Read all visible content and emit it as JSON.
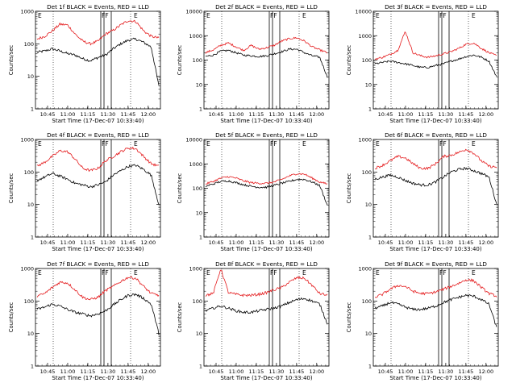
{
  "figure": {
    "rows": 3,
    "cols": 3,
    "colors": {
      "events": "#000000",
      "lld": "#e41a1c",
      "frame": "#000000",
      "background": "#ffffff"
    }
  },
  "chart_data": [
    {
      "type": "line",
      "title": "Det 1f BLACK = Events, RED = LLD",
      "xlabel": "Start Time (17-Dec-07 10:33:40)",
      "ylabel": "Counts/sec",
      "y_scale": "log",
      "ylim": [
        1,
        1000
      ],
      "x_ticks": [
        "10:45",
        "11:00",
        "11:15",
        "11:30",
        "11:45",
        "12:00"
      ],
      "y_ticks": [
        "1",
        "10",
        "100",
        "1000"
      ],
      "flags": [
        "E",
        "FF",
        "E"
      ],
      "series": [
        {
          "name": "Events",
          "color": "#000000",
          "y": [
            55,
            60,
            70,
            60,
            50,
            45,
            35,
            30,
            38,
            45,
            70,
            100,
            130,
            140,
            110,
            80,
            5
          ]
        },
        {
          "name": "LLD",
          "color": "#e41a1c",
          "y": [
            140,
            170,
            250,
            400,
            380,
            200,
            120,
            100,
            120,
            200,
            260,
            380,
            520,
            480,
            250,
            170,
            150
          ]
        }
      ]
    },
    {
      "type": "line",
      "title": "Det 2f BLACK = Events, RED = LLD",
      "xlabel": "Start Time (17-Dec-07 10:33:40)",
      "ylabel": "Counts/sec",
      "y_scale": "log",
      "ylim": [
        1,
        10000
      ],
      "x_ticks": [
        "10:45",
        "11:00",
        "11:15",
        "11:30",
        "11:45",
        "12:00"
      ],
      "y_ticks": [
        "1",
        "10",
        "100",
        "1000",
        "10000"
      ],
      "flags": [
        "E",
        "FF",
        "E"
      ],
      "series": [
        {
          "name": "Events",
          "color": "#000000",
          "y": [
            140,
            160,
            230,
            250,
            200,
            160,
            150,
            140,
            150,
            180,
            220,
            280,
            280,
            200,
            150,
            130,
            20
          ]
        },
        {
          "name": "LLD",
          "color": "#e41a1c",
          "y": [
            200,
            260,
            400,
            500,
            350,
            250,
            400,
            280,
            320,
            400,
            600,
            750,
            820,
            600,
            350,
            260,
            200
          ]
        }
      ]
    },
    {
      "type": "line",
      "title": "Det 3f BLACK = Events, RED = LLD",
      "xlabel": "Start Time (17-Dec-07 10:33:40)",
      "ylabel": "Counts/sec",
      "y_scale": "log",
      "ylim": [
        1,
        10000
      ],
      "x_ticks": [
        "10:45",
        "11:00",
        "11:15",
        "11:30",
        "11:45",
        "12:00"
      ],
      "y_ticks": [
        "1",
        "10",
        "100",
        "1000",
        "10000"
      ],
      "flags": [
        "E",
        "FF",
        "E"
      ],
      "series": [
        {
          "name": "Events",
          "color": "#000000",
          "y": [
            70,
            80,
            90,
            80,
            70,
            60,
            50,
            50,
            60,
            70,
            90,
            110,
            140,
            160,
            130,
            90,
            20
          ]
        },
        {
          "name": "LLD",
          "color": "#e41a1c",
          "y": [
            110,
            130,
            170,
            250,
            1500,
            200,
            150,
            130,
            150,
            180,
            220,
            300,
            450,
            500,
            300,
            200,
            150
          ]
        }
      ]
    },
    {
      "type": "line",
      "title": "Det 4f BLACK = Events, RED = LLD",
      "xlabel": "Start Time (17-Dec-07 10:33:40)",
      "ylabel": "Counts/sec",
      "y_scale": "log",
      "ylim": [
        1,
        1000
      ],
      "x_ticks": [
        "10:45",
        "11:00",
        "11:15",
        "11:30",
        "11:45",
        "12:00"
      ],
      "y_ticks": [
        "1",
        "10",
        "100",
        "1000"
      ],
      "flags": [
        "E",
        "FF",
        "E"
      ],
      "series": [
        {
          "name": "Events",
          "color": "#000000",
          "y": [
            55,
            70,
            90,
            75,
            60,
            45,
            40,
            35,
            40,
            50,
            80,
            110,
            150,
            160,
            120,
            80,
            10
          ]
        },
        {
          "name": "LLD",
          "color": "#e41a1c",
          "y": [
            150,
            200,
            300,
            450,
            420,
            250,
            130,
            110,
            130,
            220,
            300,
            420,
            550,
            520,
            300,
            180,
            150
          ]
        }
      ]
    },
    {
      "type": "line",
      "title": "Det 5f BLACK = Events, RED = LLD",
      "xlabel": "Start Time (17-Dec-07 10:33:40)",
      "ylabel": "Counts/sec",
      "y_scale": "log",
      "ylim": [
        1,
        10000
      ],
      "x_ticks": [
        "10:45",
        "11:00",
        "11:15",
        "11:30",
        "11:45",
        "12:00"
      ],
      "y_ticks": [
        "1",
        "10",
        "100",
        "1000",
        "10000"
      ],
      "flags": [
        "E",
        "FF",
        "E"
      ],
      "series": [
        {
          "name": "Events",
          "color": "#000000",
          "y": [
            120,
            150,
            190,
            200,
            170,
            140,
            120,
            110,
            110,
            130,
            160,
            190,
            230,
            230,
            180,
            130,
            20
          ]
        },
        {
          "name": "LLD",
          "color": "#e41a1c",
          "y": [
            150,
            190,
            260,
            300,
            260,
            200,
            170,
            160,
            160,
            180,
            230,
            320,
            400,
            380,
            260,
            180,
            150
          ]
        }
      ]
    },
    {
      "type": "line",
      "title": "Det 6f BLACK = Events, RED = LLD",
      "xlabel": "Start Time (17-Dec-07 10:33:40)",
      "ylabel": "Counts/sec",
      "y_scale": "log",
      "ylim": [
        1,
        1000
      ],
      "x_ticks": [
        "10:45",
        "11:00",
        "11:15",
        "11:30",
        "11:45",
        "12:00"
      ],
      "y_ticks": [
        "1",
        "10",
        "100",
        "1000"
      ],
      "flags": [
        "E",
        "FF",
        "E"
      ],
      "series": [
        {
          "name": "Events",
          "color": "#000000",
          "y": [
            60,
            70,
            80,
            70,
            55,
            45,
            40,
            40,
            50,
            70,
            100,
            120,
            130,
            110,
            90,
            70,
            10
          ]
        },
        {
          "name": "LLD",
          "color": "#e41a1c",
          "y": [
            130,
            160,
            220,
            300,
            270,
            180,
            130,
            130,
            180,
            300,
            330,
            400,
            500,
            380,
            220,
            150,
            140
          ]
        }
      ]
    },
    {
      "type": "line",
      "title": "Det 7f BLACK = Events, RED = LLD",
      "xlabel": "Start Time (17-Dec-07 10:33:40)",
      "ylabel": "Counts/sec",
      "y_scale": "log",
      "ylim": [
        1,
        1000
      ],
      "x_ticks": [
        "10:45",
        "11:00",
        "11:15",
        "11:30",
        "11:45",
        "12:00"
      ],
      "y_ticks": [
        "1",
        "10",
        "100",
        "1000"
      ],
      "flags": [
        "E",
        "FF",
        "E"
      ],
      "series": [
        {
          "name": "Events",
          "color": "#000000",
          "y": [
            55,
            65,
            80,
            70,
            55,
            45,
            40,
            35,
            40,
            50,
            75,
            110,
            150,
            160,
            120,
            80,
            10
          ]
        },
        {
          "name": "LLD",
          "color": "#e41a1c",
          "y": [
            140,
            170,
            260,
            380,
            360,
            220,
            130,
            110,
            130,
            210,
            280,
            400,
            540,
            500,
            280,
            170,
            150
          ]
        }
      ]
    },
    {
      "type": "line",
      "title": "Det 8f BLACK = Events, RED = LLD",
      "xlabel": "Start Time (17-Dec-07 10:33:40)",
      "ylabel": "Counts/sec",
      "y_scale": "log",
      "ylim": [
        1,
        1000
      ],
      "x_ticks": [
        "10:45",
        "11:00",
        "11:15",
        "11:30",
        "11:45",
        "12:00"
      ],
      "y_ticks": [
        "1",
        "10",
        "100",
        "1000"
      ],
      "flags": [
        "E",
        "FF",
        "E"
      ],
      "series": [
        {
          "name": "Events",
          "color": "#000000",
          "y": [
            50,
            60,
            70,
            60,
            50,
            45,
            45,
            50,
            55,
            60,
            70,
            90,
            110,
            120,
            100,
            80,
            20
          ]
        },
        {
          "name": "LLD",
          "color": "#e41a1c",
          "y": [
            150,
            170,
            1000,
            180,
            160,
            150,
            150,
            160,
            180,
            220,
            260,
            380,
            520,
            500,
            300,
            170,
            150
          ]
        }
      ]
    },
    {
      "type": "line",
      "title": "Det 9f BLACK = Events, RED = LLD",
      "xlabel": "Start Time (17-Dec-07 10:33:40)",
      "ylabel": "Counts/sec",
      "y_scale": "log",
      "ylim": [
        1,
        1000
      ],
      "x_ticks": [
        "10:45",
        "11:00",
        "11:15",
        "11:30",
        "11:45",
        "12:00"
      ],
      "y_ticks": [
        "1",
        "10",
        "100",
        "1000"
      ],
      "flags": [
        "E",
        "FF",
        "E"
      ],
      "series": [
        {
          "name": "Events",
          "color": "#000000",
          "y": [
            60,
            70,
            90,
            80,
            65,
            55,
            55,
            60,
            70,
            90,
            110,
            130,
            150,
            140,
            110,
            80,
            15
          ]
        },
        {
          "name": "LLD",
          "color": "#e41a1c",
          "y": [
            130,
            160,
            230,
            300,
            280,
            200,
            170,
            170,
            190,
            230,
            280,
            350,
            450,
            420,
            260,
            170,
            140
          ]
        }
      ]
    }
  ]
}
